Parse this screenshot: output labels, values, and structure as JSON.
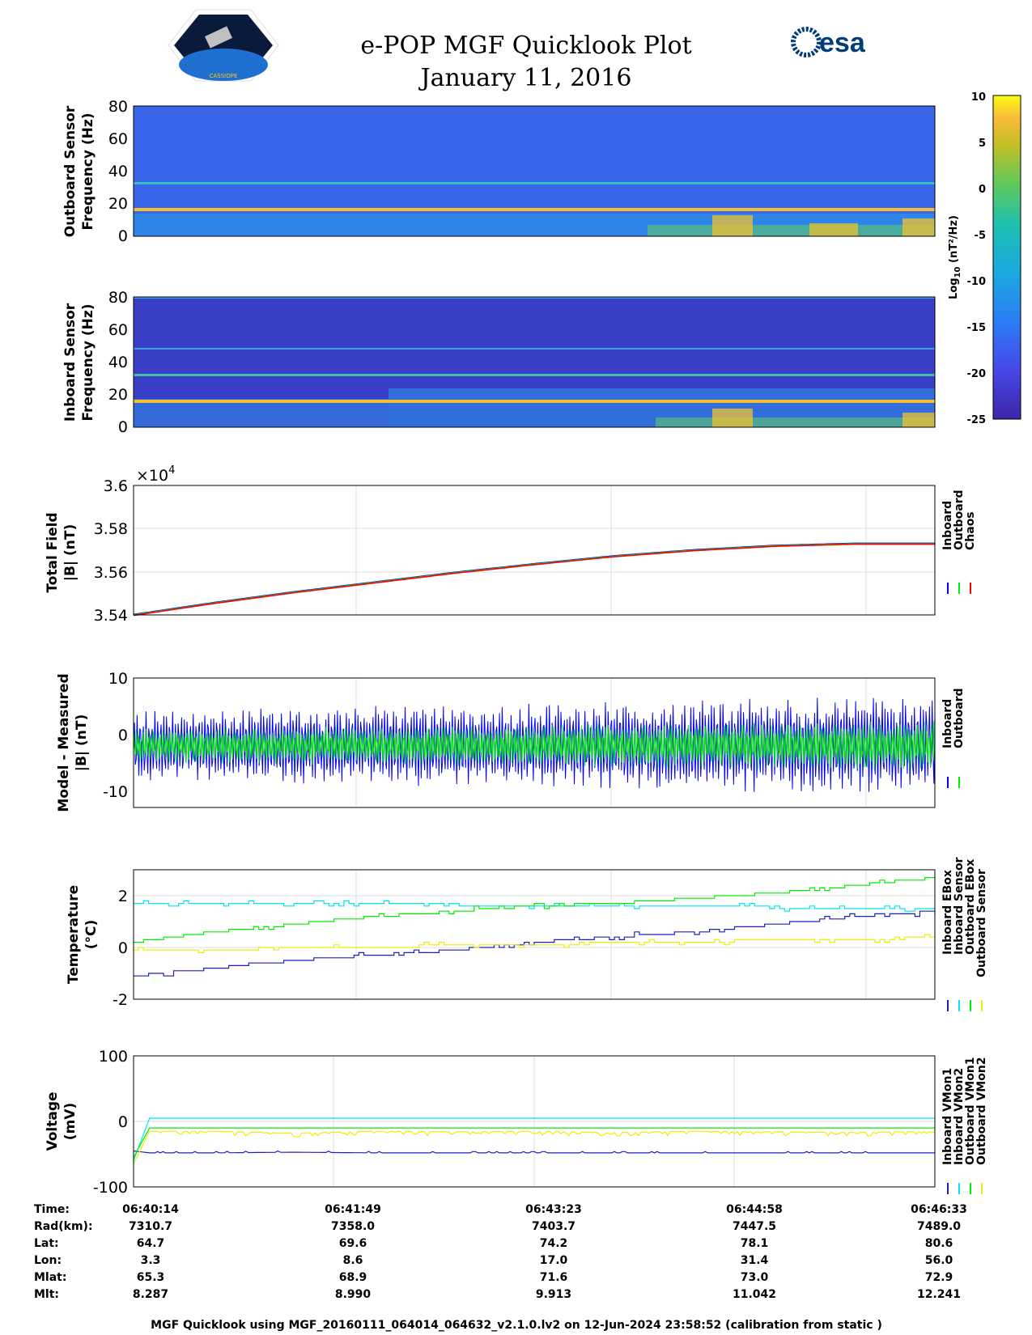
{
  "header": {
    "title": "e-POP MGF Quicklook Plot",
    "date": "January 11, 2016",
    "logo_left_text": "CASSIOPE",
    "logo_right_text": "esa"
  },
  "colorbar": {
    "label": "Log10 (nT²/Hz)",
    "label_main": "Log",
    "label_sub": "10",
    "label_tail": " (nT²/Hz)",
    "ticks": [
      "10",
      "5",
      "0",
      "-5",
      "-10",
      "-15",
      "-20",
      "-25"
    ],
    "range": [
      -25,
      10
    ]
  },
  "colors": {
    "inboard": "#0000ff",
    "outboard": "#00ee00",
    "chaos": "#ff0000",
    "cyan": "#00e5ee",
    "yellow": "#eeee00",
    "navy": "#1f1fbf"
  },
  "chart_data": [
    {
      "type": "heatmap",
      "ylabel_line1": "Outboard Sensor",
      "ylabel_line2": "Frequency (Hz)",
      "ylim": [
        0,
        80
      ],
      "yticks": [
        "80",
        "60",
        "40",
        "20",
        "0"
      ],
      "persistent_lines_hz": [
        16,
        32
      ],
      "low_freq_activity": "increasing after 06:45"
    },
    {
      "type": "heatmap",
      "ylabel_line1": "Inboard Sensor",
      "ylabel_line2": "Frequency (Hz)",
      "ylim": [
        0,
        80
      ],
      "yticks": [
        "80",
        "60",
        "40",
        "20",
        "0"
      ],
      "persistent_lines_hz": [
        16,
        32,
        48,
        80
      ]
    },
    {
      "type": "line",
      "ylabel_line1": "Total Field",
      "ylabel_line2": "|B| (nT)",
      "exponent": "×10",
      "exponent_power": "4",
      "ylim": [
        3.54,
        3.6
      ],
      "yticks": [
        "3.6",
        "3.58",
        "3.56",
        "3.54"
      ],
      "x": [
        0,
        0.1,
        0.2,
        0.3,
        0.4,
        0.5,
        0.6,
        0.7,
        0.8,
        0.9,
        1.0
      ],
      "series": [
        {
          "name": "Inboard",
          "values": [
            3.54,
            3.5455,
            3.5505,
            3.555,
            3.5595,
            3.5635,
            3.5672,
            3.57,
            3.572,
            3.573,
            3.573
          ]
        },
        {
          "name": "Outboard",
          "values": [
            3.54,
            3.5455,
            3.5505,
            3.555,
            3.5595,
            3.5635,
            3.5672,
            3.57,
            3.572,
            3.573,
            3.573
          ]
        },
        {
          "name": "Chaos",
          "values": [
            3.54,
            3.5455,
            3.5505,
            3.555,
            3.5595,
            3.5635,
            3.5672,
            3.57,
            3.572,
            3.573,
            3.573
          ]
        }
      ],
      "legend": [
        "Inboard",
        "Outboard",
        "Chaos"
      ]
    },
    {
      "type": "line",
      "ylabel_line1": "Model - Measured",
      "ylabel_line2": "|B| (nT)",
      "ylim": [
        -13,
        10
      ],
      "yticks": [
        "10",
        "0",
        "-10"
      ],
      "series": [
        {
          "name": "Inboard",
          "range": [
            -12,
            10
          ]
        },
        {
          "name": "Outboard",
          "range": [
            -7,
            4
          ]
        }
      ],
      "legend": [
        "Inboard",
        "Outboard"
      ]
    },
    {
      "type": "line",
      "ylabel_line1": "Temperature",
      "ylabel_line2": "(°C)",
      "ylim": [
        -2,
        3
      ],
      "yticks": [
        "2",
        "0",
        "-2"
      ],
      "x": [
        0,
        0.1,
        0.2,
        0.3,
        0.4,
        0.5,
        0.6,
        0.7,
        0.8,
        0.9,
        1.0
      ],
      "series": [
        {
          "name": "Inboard EBox",
          "values": [
            -1.1,
            -0.8,
            -0.5,
            -0.3,
            -0.1,
            0.2,
            0.4,
            0.6,
            0.9,
            1.2,
            1.4
          ]
        },
        {
          "name": "Inboard Sensor",
          "values": [
            1.7,
            1.7,
            1.7,
            1.65,
            1.65,
            1.6,
            1.6,
            1.55,
            1.55,
            1.5,
            1.45
          ]
        },
        {
          "name": "Outboard EBox",
          "values": [
            0.2,
            0.6,
            0.9,
            1.2,
            1.4,
            1.6,
            1.7,
            1.9,
            2.1,
            2.4,
            2.7
          ]
        },
        {
          "name": "Outboard Sensor",
          "values": [
            -0.1,
            -0.1,
            0.0,
            0.0,
            0.1,
            0.1,
            0.2,
            0.2,
            0.3,
            0.3,
            0.4
          ]
        }
      ],
      "legend": [
        "Inboard EBox",
        "Inboard Sensor",
        "Outboard EBox",
        "Outboard Sensor"
      ]
    },
    {
      "type": "line",
      "ylabel_line1": "Voltage",
      "ylabel_line2": "(mV)",
      "ylim": [
        -100,
        100
      ],
      "yticks": [
        "100",
        "0",
        "-100"
      ],
      "x": [
        0,
        0.02,
        0.1,
        0.2,
        0.3,
        0.4,
        0.5,
        0.6,
        0.7,
        0.8,
        0.9,
        1.0
      ],
      "series": [
        {
          "name": "Inboard VMon1",
          "values": [
            -45,
            -48,
            -48,
            -47,
            -48,
            -48,
            -48,
            -48,
            -48,
            -48,
            -48,
            -48
          ]
        },
        {
          "name": "Inboard VMon2",
          "values": [
            -60,
            5,
            5,
            5,
            5,
            5,
            5,
            5,
            5,
            5,
            5,
            5
          ]
        },
        {
          "name": "Outboard VMon1",
          "values": [
            -55,
            -10,
            -10,
            -10,
            -10,
            -10,
            -10,
            -10,
            -10,
            -10,
            -10,
            -10
          ]
        },
        {
          "name": "Outboard VMon2",
          "values": [
            -65,
            -15,
            -15,
            -18,
            -15,
            -16,
            -15,
            -17,
            -15,
            -16,
            -17,
            -15
          ]
        }
      ],
      "legend": [
        "Inboard VMon1",
        "Inboard VMon2",
        "Outboard VMon1",
        "Outboard VMon2"
      ]
    }
  ],
  "info_table": {
    "row_labels": [
      "Time:",
      "Rad(km):",
      "Lat:",
      "Lon:",
      "Mlat:",
      "Mlt:"
    ],
    "columns": [
      [
        "06:40:14",
        "7310.7",
        "64.7",
        "3.3",
        "65.3",
        "8.287"
      ],
      [
        "06:41:49",
        "7358.0",
        "69.6",
        "8.6",
        "68.9",
        "8.990"
      ],
      [
        "06:43:23",
        "7403.7",
        "74.2",
        "17.0",
        "71.6",
        "9.913"
      ],
      [
        "06:44:58",
        "7447.5",
        "78.1",
        "31.4",
        "73.0",
        "11.042"
      ],
      [
        "06:46:33",
        "7489.0",
        "80.6",
        "56.0",
        "72.9",
        "12.241"
      ]
    ]
  },
  "footer": "MGF Quicklook using MGF_20160111_064014_064632_v2.1.0.lv2 on 12-Jun-2024 23:58:52 (calibration from static )"
}
